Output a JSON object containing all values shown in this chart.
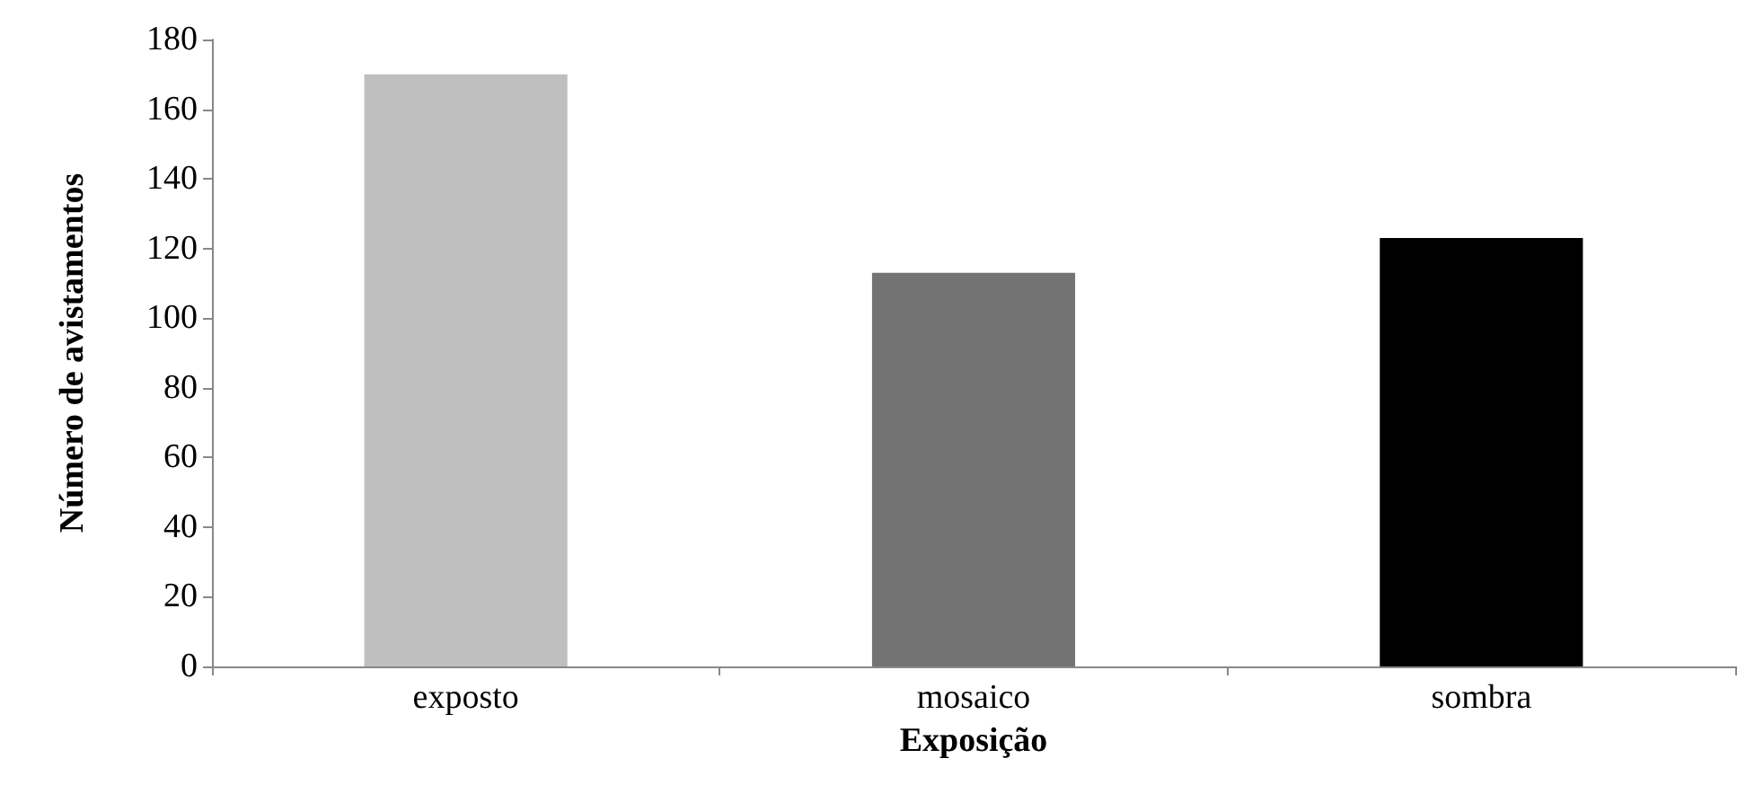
{
  "chart_data": {
    "type": "bar",
    "xlabel": "Exposição",
    "ylabel": "Número de avistamentos",
    "categories": [
      "exposto",
      "mosaico",
      "sombra"
    ],
    "values": [
      170,
      113,
      123
    ],
    "colors": [
      "#bfbfbf",
      "#737373",
      "#000000"
    ],
    "ylim": [
      0,
      180
    ],
    "yticks": [
      0,
      20,
      40,
      60,
      80,
      100,
      120,
      140,
      160,
      180
    ],
    "grid": false
  }
}
